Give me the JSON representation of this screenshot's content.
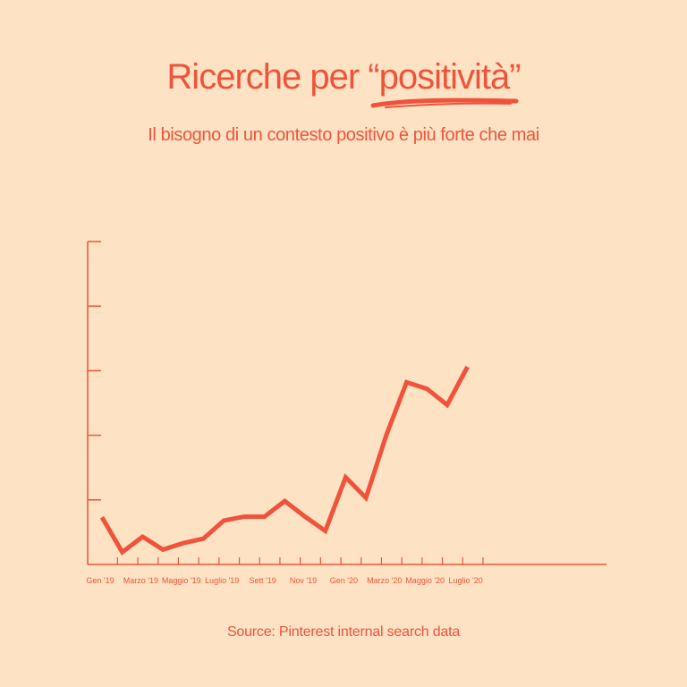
{
  "header": {
    "title_prefix": "Ricerche per ",
    "title_highlight": "“positività”",
    "subtitle": "Il bisogno di un contesto positivo è più forte che mai"
  },
  "footer": {
    "source": "Source: Pinterest internal search data"
  },
  "colors": {
    "background": "#fde3c3",
    "accent": "#f0533b"
  },
  "chart_data": {
    "type": "line",
    "title": "",
    "xlabel": "",
    "ylabel": "",
    "x_tick_labels": [
      "Gen '19",
      "Marzo '19",
      "Maggio '19",
      "Luglio '19",
      "Sett '19",
      "Nov '19",
      "Gen '20",
      "Marzo '20",
      "Maggio '20",
      "Luglio '20"
    ],
    "ylim": [
      0,
      5
    ],
    "y_tick_count": 5,
    "y_tick_labels_shown": false,
    "series": [
      {
        "values": [
          0.73,
          0.19,
          0.43,
          0.23,
          0.33,
          0.4,
          0.68,
          0.74,
          0.74,
          0.98,
          0.74,
          0.52,
          1.35,
          1.03,
          2.0,
          2.82,
          2.72,
          2.47,
          3.06
        ]
      }
    ]
  }
}
